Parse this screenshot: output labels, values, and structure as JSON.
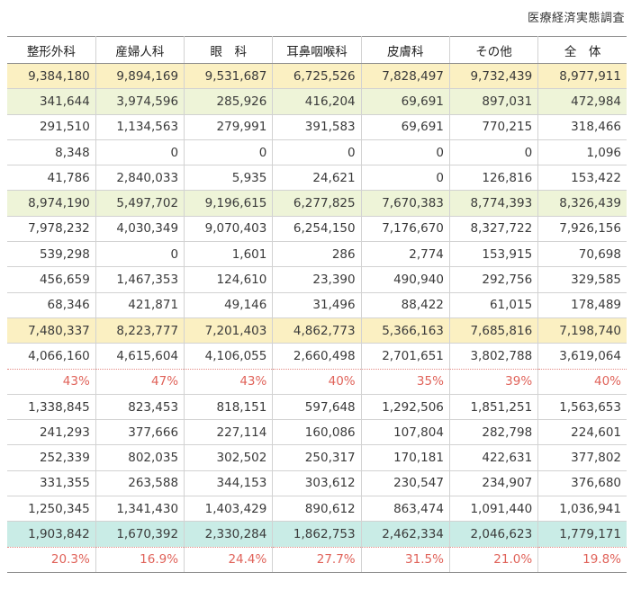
{
  "source": "医療経済実態調査",
  "columns": [
    "整形外科",
    "産婦人科",
    "眼　科",
    "耳鼻咽喉科",
    "皮膚科",
    "その他",
    "全　体"
  ],
  "rows": [
    {
      "highlight": "yellow",
      "cells": [
        "9,384,180",
        "9,894,169",
        "9,531,687",
        "6,725,526",
        "7,828,497",
        "9,732,439",
        "8,977,911"
      ]
    },
    {
      "highlight": "green",
      "cells": [
        "341,644",
        "3,974,596",
        "285,926",
        "416,204",
        "69,691",
        "897,031",
        "472,984"
      ]
    },
    {
      "highlight": "",
      "cells": [
        "291,510",
        "1,134,563",
        "279,991",
        "391,583",
        "69,691",
        "770,215",
        "318,466"
      ]
    },
    {
      "highlight": "",
      "cells": [
        "8,348",
        "0",
        "0",
        "0",
        "0",
        "0",
        "1,096"
      ]
    },
    {
      "highlight": "",
      "cells": [
        "41,786",
        "2,840,033",
        "5,935",
        "24,621",
        "0",
        "126,816",
        "153,422"
      ]
    },
    {
      "highlight": "green",
      "cells": [
        "8,974,190",
        "5,497,702",
        "9,196,615",
        "6,277,825",
        "7,670,383",
        "8,774,393",
        "8,326,439"
      ]
    },
    {
      "highlight": "",
      "cells": [
        "7,978,232",
        "4,030,349",
        "9,070,403",
        "6,254,150",
        "7,176,670",
        "8,327,722",
        "7,926,156"
      ]
    },
    {
      "highlight": "",
      "cells": [
        "539,298",
        "0",
        "1,601",
        "286",
        "2,774",
        "153,915",
        "70,698"
      ]
    },
    {
      "highlight": "",
      "cells": [
        "456,659",
        "1,467,353",
        "124,610",
        "23,390",
        "490,940",
        "292,756",
        "329,585"
      ]
    },
    {
      "highlight": "",
      "cells": [
        "68,346",
        "421,871",
        "49,146",
        "31,496",
        "88,422",
        "61,015",
        "178,489"
      ]
    },
    {
      "highlight": "yellow",
      "cells": [
        "7,480,337",
        "8,223,777",
        "7,201,403",
        "4,862,773",
        "5,366,163",
        "7,685,816",
        "7,198,740"
      ]
    },
    {
      "highlight": "",
      "style": "sep-dotted",
      "cells": [
        "4,066,160",
        "4,615,604",
        "4,106,055",
        "2,660,498",
        "2,701,651",
        "3,802,788",
        "3,619,064"
      ]
    },
    {
      "highlight": "",
      "style": "pct-red",
      "cells": [
        "43%",
        "47%",
        "43%",
        "40%",
        "35%",
        "39%",
        "40%"
      ]
    },
    {
      "highlight": "",
      "cells": [
        "1,338,845",
        "823,453",
        "818,151",
        "597,648",
        "1,292,506",
        "1,851,251",
        "1,563,653"
      ]
    },
    {
      "highlight": "",
      "cells": [
        "241,293",
        "377,666",
        "227,114",
        "160,086",
        "107,804",
        "282,798",
        "224,601"
      ]
    },
    {
      "highlight": "",
      "cells": [
        "252,339",
        "802,035",
        "302,502",
        "250,317",
        "170,181",
        "422,631",
        "377,802"
      ]
    },
    {
      "highlight": "",
      "cells": [
        "331,355",
        "263,588",
        "344,153",
        "303,612",
        "230,547",
        "234,907",
        "376,680"
      ]
    },
    {
      "highlight": "",
      "cells": [
        "1,250,345",
        "1,341,430",
        "1,403,429",
        "890,612",
        "863,474",
        "1,091,440",
        "1,036,941"
      ]
    },
    {
      "highlight": "teal",
      "style": "sep-dotted",
      "cells": [
        "1,903,842",
        "1,670,392",
        "2,330,284",
        "1,862,753",
        "2,462,334",
        "2,046,623",
        "1,779,171"
      ]
    },
    {
      "highlight": "",
      "style": "pct-red last",
      "cells": [
        "20.3%",
        "16.9%",
        "24.4%",
        "27.7%",
        "31.5%",
        "21.0%",
        "19.8%"
      ]
    }
  ]
}
